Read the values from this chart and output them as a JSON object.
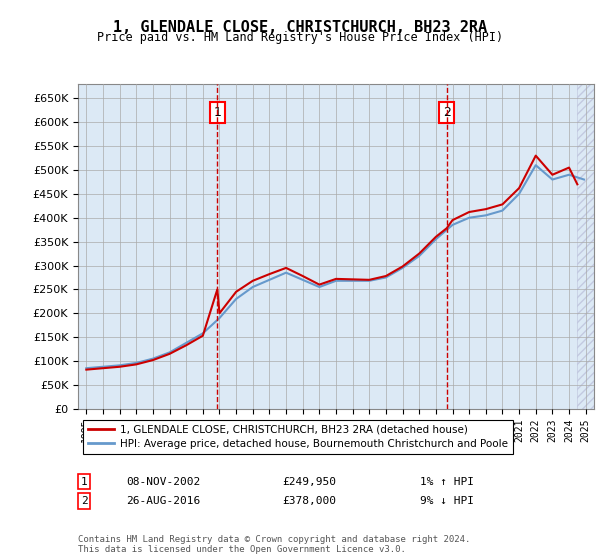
{
  "title": "1, GLENDALE CLOSE, CHRISTCHURCH, BH23 2RA",
  "subtitle": "Price paid vs. HM Land Registry's House Price Index (HPI)",
  "legend_line1": "1, GLENDALE CLOSE, CHRISTCHURCH, BH23 2RA (detached house)",
  "legend_line2": "HPI: Average price, detached house, Bournemouth Christchurch and Poole",
  "purchase1_date": "08-NOV-2002",
  "purchase1_price": 249950,
  "purchase1_hpi": "1% ↑ HPI",
  "purchase1_year": 2002.87,
  "purchase2_date": "26-AUG-2016",
  "purchase2_price": 378000,
  "purchase2_hpi": "9% ↓ HPI",
  "purchase2_year": 2016.65,
  "footer": "Contains HM Land Registry data © Crown copyright and database right 2024.\nThis data is licensed under the Open Government Licence v3.0.",
  "ylim": [
    0,
    680000
  ],
  "xlim": [
    1994.5,
    2025.5
  ],
  "background_color": "#dce9f5",
  "line_color_red": "#cc0000",
  "line_color_blue": "#6699cc",
  "grid_color": "#aaaaaa",
  "hpi_years": [
    1995,
    1996,
    1997,
    1998,
    1999,
    2000,
    2001,
    2002,
    2003,
    2004,
    2005,
    2006,
    2007,
    2008,
    2009,
    2010,
    2011,
    2012,
    2013,
    2014,
    2015,
    2016,
    2017,
    2018,
    2019,
    2020,
    2021,
    2022,
    2023,
    2024,
    2024.9
  ],
  "hpi_values": [
    85000,
    88000,
    91000,
    96000,
    105000,
    118000,
    138000,
    158000,
    190000,
    230000,
    255000,
    270000,
    285000,
    270000,
    255000,
    268000,
    268000,
    268000,
    275000,
    295000,
    320000,
    355000,
    385000,
    400000,
    405000,
    415000,
    450000,
    510000,
    480000,
    490000,
    480000
  ],
  "red_years": [
    1995,
    1996,
    1997,
    1998,
    1999,
    2000,
    2001,
    2002,
    2002.87,
    2003,
    2004,
    2005,
    2006,
    2007,
    2008,
    2009,
    2010,
    2011,
    2012,
    2013,
    2014,
    2015,
    2016,
    2016.65,
    2017,
    2018,
    2019,
    2020,
    2021,
    2022,
    2023,
    2024,
    2024.5
  ],
  "red_values": [
    82000,
    85000,
    88000,
    93000,
    102000,
    115000,
    133000,
    153000,
    249950,
    200000,
    245000,
    268000,
    282000,
    295000,
    278000,
    260000,
    272000,
    271000,
    270000,
    278000,
    298000,
    325000,
    360000,
    378000,
    395000,
    412000,
    418000,
    428000,
    462000,
    530000,
    490000,
    505000,
    470000
  ]
}
